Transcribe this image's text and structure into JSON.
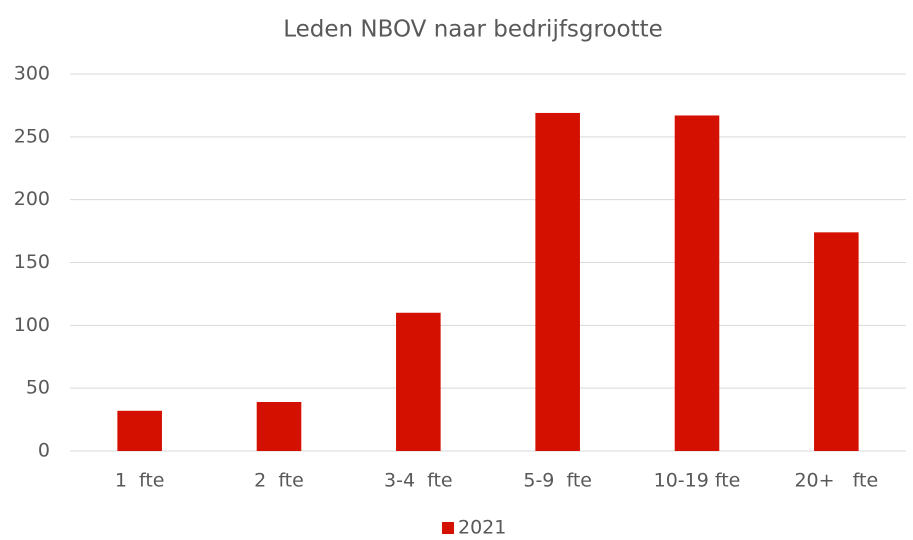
{
  "chart_data": {
    "type": "bar",
    "title": "Leden NBOV naar bedrijfsgrootte",
    "categories": [
      "1  fte",
      "2  fte",
      "3-4  fte",
      "5-9  fte",
      "10-19 fte",
      "20+   fte"
    ],
    "series": [
      {
        "name": "2021",
        "color": "#d41100",
        "values": [
          32,
          39,
          110,
          269,
          267,
          174
        ]
      }
    ],
    "ylim": [
      0,
      300
    ],
    "yticks": [
      0,
      50,
      100,
      150,
      200,
      250,
      300
    ],
    "grid": true,
    "legend": "bottom"
  }
}
